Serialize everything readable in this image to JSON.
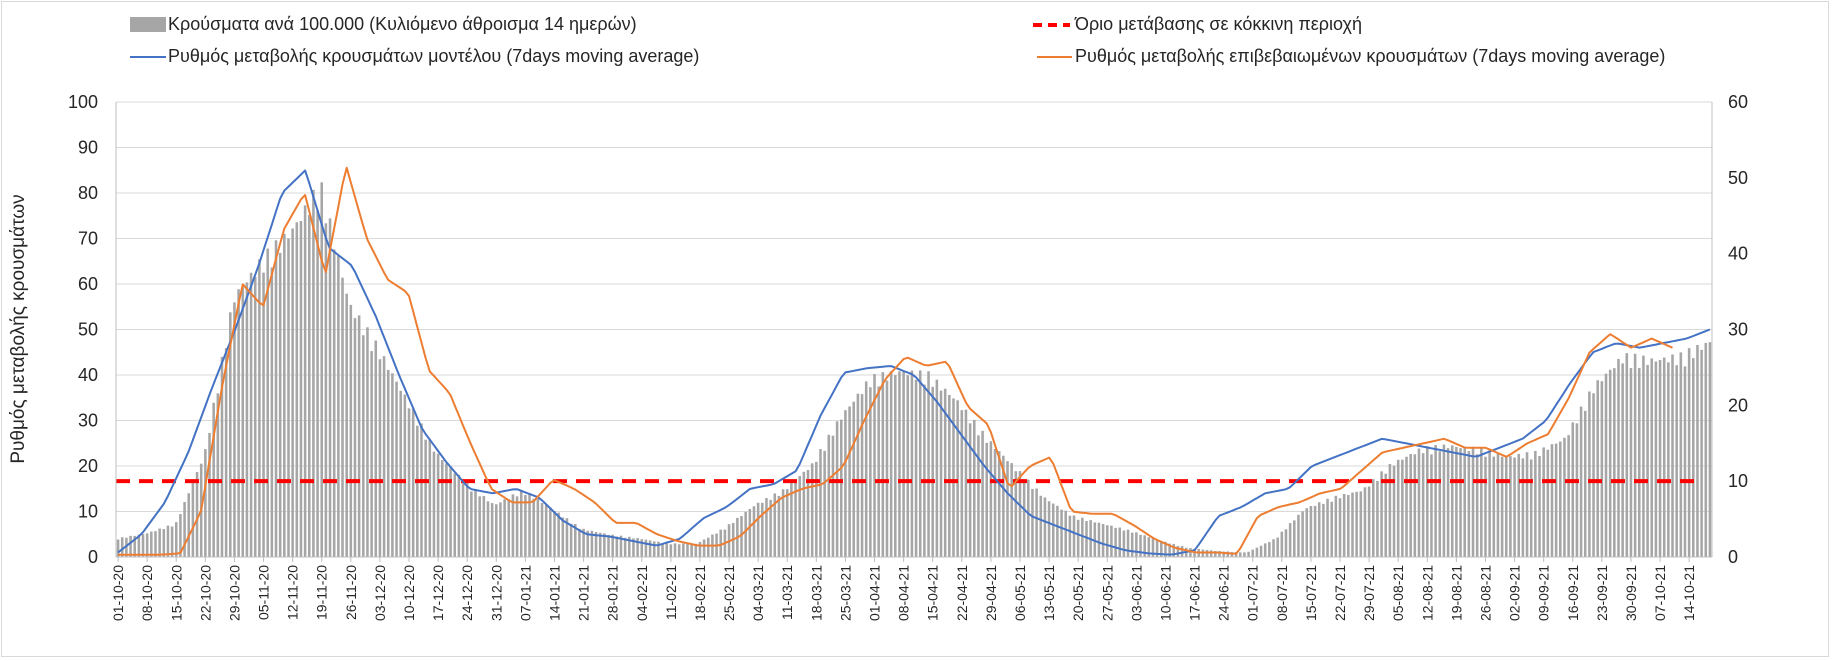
{
  "chart_data": {
    "type": "bar",
    "legend": {
      "position": "top",
      "bars": "Κρούσματα ανά 100.000 (Κυλιόμενο άθροισμα 14 ημερών)",
      "threshold": "Όριο μετάβασης σε κόκκινη περιοχή",
      "model": "Ρυθμός μεταβολής κρουσμάτων μοντέλου (7days moving average)",
      "confirmed": "Ρυθμός μεταβολής επιβεβαιωμένων κρουσμάτων (7days moving average)"
    },
    "ylabel_left": "Ρυθμός μεταβολής κρουσμάτων",
    "ylim_left": [
      0,
      100
    ],
    "yticks_left": [
      "0",
      "10",
      "20",
      "30",
      "40",
      "50",
      "60",
      "70",
      "80",
      "90",
      "100"
    ],
    "ylim_right": [
      0,
      60
    ],
    "yticks_right": [
      "0",
      "10",
      "20",
      "30",
      "40",
      "50",
      "60"
    ],
    "grid": true,
    "x_ticks": [
      "01-10-20",
      "08-10-20",
      "15-10-20",
      "22-10-20",
      "29-10-20",
      "05-11-20",
      "12-11-20",
      "19-11-20",
      "26-11-20",
      "03-12-20",
      "10-12-20",
      "17-12-20",
      "24-12-20",
      "31-12-20",
      "07-01-21",
      "14-01-21",
      "21-01-21",
      "28-01-21",
      "04-02-21",
      "11-02-21",
      "18-02-21",
      "25-02-21",
      "04-03-21",
      "11-03-21",
      "18-03-21",
      "25-03-21",
      "01-04-21",
      "08-04-21",
      "15-04-21",
      "22-04-21",
      "29-04-21",
      "06-05-21",
      "13-05-21",
      "20-05-21",
      "27-05-21",
      "03-06-21",
      "10-06-21",
      "17-06-21",
      "24-06-21",
      "01-07-21",
      "08-07-21",
      "15-07-21",
      "22-07-21",
      "29-07-21",
      "05-08-21",
      "12-08-21",
      "19-08-21",
      "26-08-21",
      "02-09-21",
      "09-09-21",
      "16-09-21",
      "23-09-21",
      "30-09-21",
      "07-10-21",
      "14-10-21"
    ],
    "threshold_right": 10,
    "bars_right_weekly": [
      2.5,
      3.2,
      4.5,
      14,
      35,
      40,
      44,
      50,
      34,
      28,
      21,
      14,
      10,
      7,
      9,
      6.5,
      3.8,
      3.0,
      2.5,
      1.8,
      1.8,
      4.0,
      7.0,
      9.0,
      12.5,
      19,
      24,
      25,
      24.5,
      21,
      16,
      12,
      8,
      5.5,
      4.5,
      3.5,
      2.2,
      1.2,
      0.8,
      0.6,
      2.5,
      6.5,
      8.0,
      9.0,
      12.5,
      14.5,
      15.0,
      14.5,
      13.5,
      14.0,
      16.0,
      23,
      27,
      26.5,
      27,
      29
    ],
    "model_left": [
      1,
      5,
      12,
      23,
      37,
      50,
      64,
      80,
      85,
      68,
      64,
      53,
      40,
      28,
      21,
      15,
      14,
      15,
      13,
      8,
      5,
      4.5,
      3.5,
      2.5,
      4,
      8.5,
      11,
      15,
      16,
      19,
      31,
      40.5,
      41.5,
      42,
      40,
      34,
      27,
      20,
      14,
      9,
      7,
      5,
      3,
      1.5,
      0.8,
      0.5,
      1.5,
      9,
      11,
      14,
      15,
      20,
      22,
      24,
      26,
      25,
      24,
      23,
      22,
      24,
      26,
      30,
      38,
      45,
      47,
      46,
      47,
      48,
      50
    ],
    "confirmed_left": [
      0.5,
      0.5,
      0.5,
      0.8,
      10,
      37,
      60,
      55,
      72,
      80,
      62,
      86,
      70,
      61,
      58,
      41,
      36,
      25,
      15,
      12,
      12,
      17,
      15,
      12,
      7.5,
      7.5,
      5,
      3.5,
      2.5,
      2.5,
      4.5,
      9,
      13,
      15,
      16,
      20,
      30,
      39,
      44,
      42,
      43,
      33,
      29,
      15,
      20,
      22,
      10,
      9.5,
      9.5,
      7,
      4,
      2,
      1,
      1,
      0.7,
      9,
      11,
      12,
      14,
      15,
      19,
      23,
      24,
      25,
      26,
      24,
      24,
      22,
      25,
      27,
      35,
      45,
      49,
      46,
      48,
      46
    ]
  }
}
